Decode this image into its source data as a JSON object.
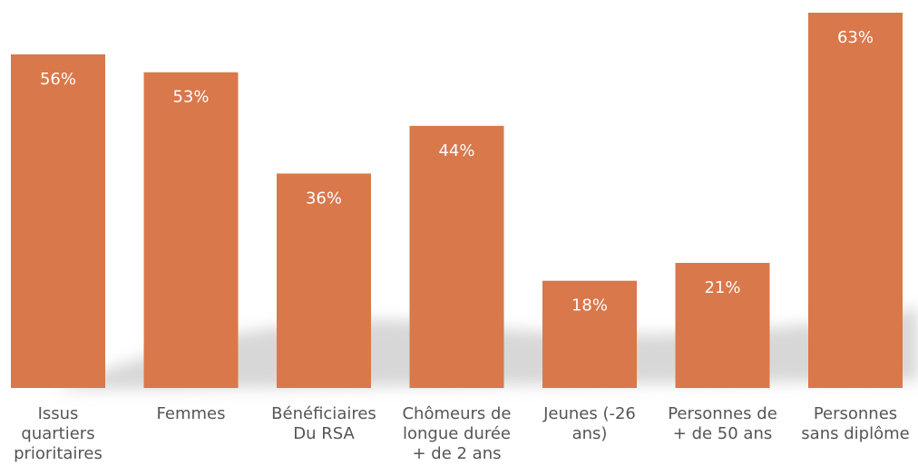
{
  "chart_data": {
    "type": "bar",
    "categories": [
      [
        "Issus",
        "quartiers",
        "prioritaires"
      ],
      [
        "Femmes"
      ],
      [
        "Bénéficiaires",
        "Du RSA"
      ],
      [
        "Chômeurs de",
        "longue durée",
        "+ de  2 ans"
      ],
      [
        "Jeunes (-26",
        "ans)"
      ],
      [
        "Personnes de",
        "+ de 50 ans"
      ],
      [
        "Personnes",
        "sans diplôme"
      ]
    ],
    "values": [
      56,
      53,
      36,
      44,
      18,
      21,
      63
    ],
    "value_labels": [
      "56%",
      "53%",
      "36%",
      "44%",
      "18%",
      "21%",
      "63%"
    ],
    "color": "#d9784b"
  }
}
